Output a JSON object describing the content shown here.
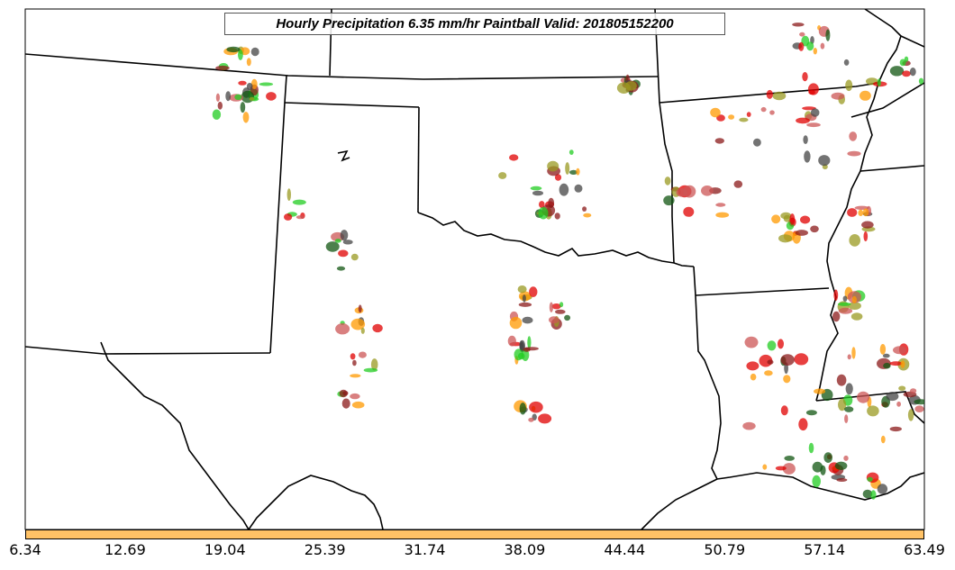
{
  "title": "Hourly Precipitation 6.35 mm/hr Paintball Valid: 201805152200",
  "colorbar": {
    "color": "#ffc266",
    "ticks": [
      "6.34",
      "12.69",
      "19.04",
      "25.39",
      "31.74",
      "38.09",
      "44.44",
      "50.79",
      "57.14",
      "63.49"
    ]
  },
  "map": {
    "border_color": "#000000",
    "blob_colors": [
      "#e00000",
      "#ff9900",
      "#22cc22",
      "#8b1a1a",
      "#999922",
      "#444444",
      "#cc5555",
      "#115511"
    ]
  }
}
